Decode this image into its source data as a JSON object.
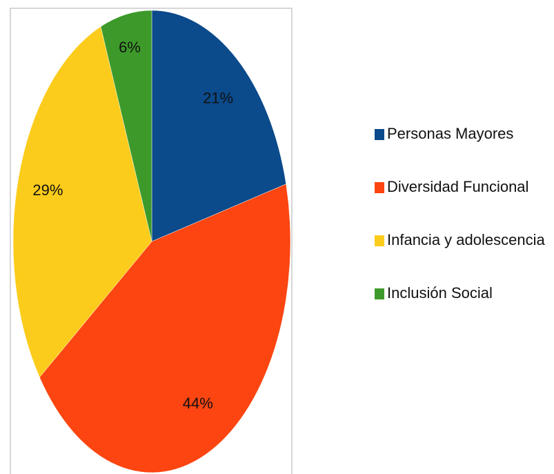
{
  "chart_data": {
    "type": "pie",
    "categories": [
      "Personas Mayores",
      "Diversidad Funcional",
      "Infancia y adolescencia",
      "Inclusión Social"
    ],
    "values": [
      21,
      44,
      29,
      6
    ],
    "value_labels": [
      "21%",
      "44%",
      "29%",
      "6%"
    ],
    "colors": [
      "#0b4a8b",
      "#fc4510",
      "#fccc1c",
      "#3d9a2a"
    ],
    "legend": "right"
  }
}
